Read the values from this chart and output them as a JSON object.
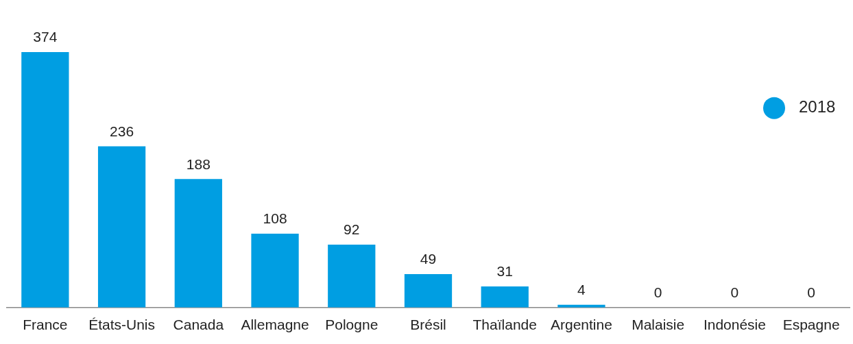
{
  "chart_data": {
    "type": "bar",
    "categories": [
      "France",
      "États-Unis",
      "Canada",
      "Allemagne",
      "Pologne",
      "Brésil",
      "Thaïlande",
      "Argentine",
      "Malaisie",
      "Indonésie",
      "Espagne"
    ],
    "series": [
      {
        "name": "2018",
        "color": "#009ee2",
        "values": [
          374,
          236,
          188,
          108,
          92,
          49,
          31,
          4,
          0,
          0,
          0
        ]
      }
    ],
    "data_labels": true,
    "legend": "right",
    "grid": false
  }
}
